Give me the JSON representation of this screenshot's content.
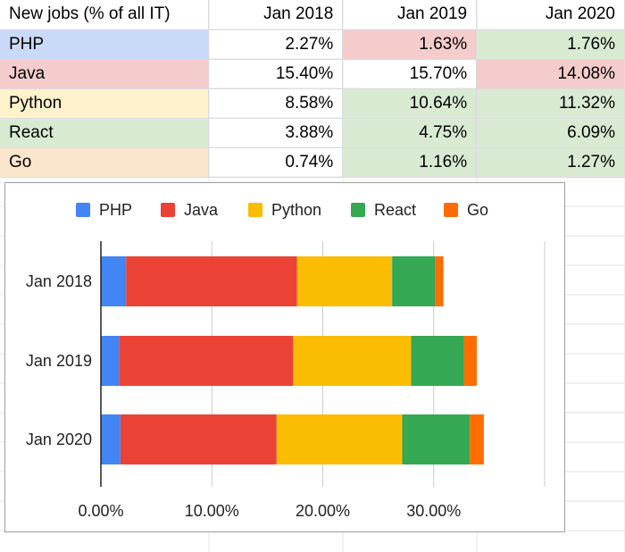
{
  "table": {
    "header": [
      "New jobs (% of all IT)",
      "Jan 2018",
      "Jan 2019",
      "Jan 2020"
    ],
    "rows": [
      {
        "label": "PHP",
        "label_color": "#c9daf8",
        "cells": [
          {
            "text": "2.27%",
            "color": ""
          },
          {
            "text": "1.63%",
            "color": "#f4cccc"
          },
          {
            "text": "1.76%",
            "color": "#d9ead3"
          }
        ]
      },
      {
        "label": "Java",
        "label_color": "#f4cccc",
        "cells": [
          {
            "text": "15.40%",
            "color": ""
          },
          {
            "text": "15.70%",
            "color": ""
          },
          {
            "text": "14.08%",
            "color": "#f4cccc"
          }
        ]
      },
      {
        "label": "Python",
        "label_color": "#fff2cc",
        "cells": [
          {
            "text": "8.58%",
            "color": ""
          },
          {
            "text": "10.64%",
            "color": "#d9ead3"
          },
          {
            "text": "11.32%",
            "color": "#d9ead3"
          }
        ]
      },
      {
        "label": "React",
        "label_color": "#d9ead3",
        "cells": [
          {
            "text": "3.88%",
            "color": ""
          },
          {
            "text": "4.75%",
            "color": "#d9ead3"
          },
          {
            "text": "6.09%",
            "color": "#d9ead3"
          }
        ]
      },
      {
        "label": "Go",
        "label_color": "#fce5cd",
        "cells": [
          {
            "text": "0.74%",
            "color": ""
          },
          {
            "text": "1.16%",
            "color": "#d9ead3"
          },
          {
            "text": "1.27%",
            "color": "#d9ead3"
          }
        ]
      }
    ]
  },
  "chart_data": {
    "type": "bar",
    "orientation": "horizontal",
    "stacked": true,
    "categories": [
      "Jan 2018",
      "Jan 2019",
      "Jan 2020"
    ],
    "series": [
      {
        "name": "PHP",
        "color": "#4285f4",
        "values": [
          2.27,
          1.63,
          1.76
        ]
      },
      {
        "name": "Java",
        "color": "#ea4335",
        "values": [
          15.4,
          15.7,
          14.08
        ]
      },
      {
        "name": "Python",
        "color": "#fbbc04",
        "values": [
          8.58,
          10.64,
          11.32
        ]
      },
      {
        "name": "React",
        "color": "#34a853",
        "values": [
          3.88,
          4.75,
          6.09
        ]
      },
      {
        "name": "Go",
        "color": "#ff6d01",
        "values": [
          0.74,
          1.16,
          1.27
        ]
      }
    ],
    "xlim": [
      0,
      40
    ],
    "xticks": [
      0,
      10,
      20,
      30,
      40
    ],
    "xtick_labels": [
      "0.00%",
      "10.00%",
      "20.00%",
      "30.00%",
      ""
    ],
    "legend_position": "top",
    "grid": true
  }
}
